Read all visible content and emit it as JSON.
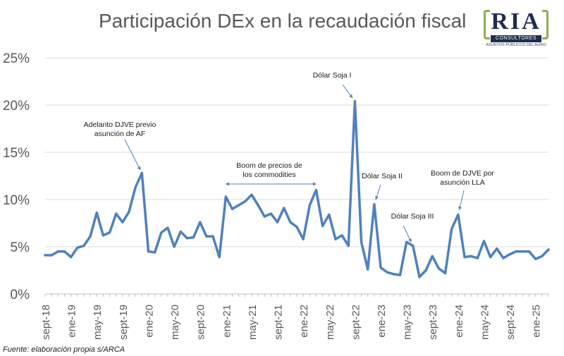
{
  "title": "Participación DEx en la recaudación fiscal",
  "source": "Fuente: elaboración propia s/ARCA",
  "logo": {
    "main": "RIA",
    "band": "CONSULTORES",
    "sub": "ASUNTOS PÚBLICOS DEL AGRO"
  },
  "colors": {
    "line": "#4f81bd",
    "grid": "#d9d9d9",
    "axis_text": "#595959",
    "arrow": "#4f81bd",
    "annotation_text": "#1a1a1a"
  },
  "chart_data": {
    "type": "line",
    "title": "Participación DEx en la recaudación fiscal",
    "xlabel": "",
    "ylabel": "",
    "ylim": [
      0,
      25
    ],
    "yticks": [
      0,
      5,
      10,
      15,
      20,
      25
    ],
    "ytick_labels": [
      "0%",
      "5%",
      "10%",
      "15%",
      "20%",
      "25%"
    ],
    "xtick_labels": [
      "sept-18",
      "ene-19",
      "may-19",
      "sept-19",
      "ene-20",
      "may-20",
      "sept-20",
      "ene-21",
      "may-21",
      "sept-21",
      "ene-22",
      "may-22",
      "sept-22",
      "ene-23",
      "may-23",
      "sept-23",
      "ene-24",
      "may-24",
      "sept-24",
      "ene-25"
    ],
    "start": "sept-18",
    "series": [
      {
        "name": "Participación DEx",
        "values": [
          4.1,
          4.1,
          4.5,
          4.5,
          3.9,
          4.9,
          5.1,
          6.1,
          8.6,
          6.2,
          6.5,
          8.5,
          7.6,
          8.7,
          11.3,
          12.8,
          4.5,
          4.4,
          6.5,
          7.0,
          5.0,
          6.6,
          5.9,
          6.0,
          7.6,
          6.1,
          6.1,
          3.9,
          10.3,
          9.0,
          9.4,
          9.8,
          10.5,
          9.4,
          8.2,
          8.5,
          7.6,
          9.1,
          7.6,
          7.1,
          5.8,
          9.4,
          11.0,
          7.2,
          8.4,
          5.8,
          6.2,
          5.1,
          20.4,
          5.5,
          2.6,
          9.5,
          2.8,
          2.3,
          2.1,
          2.0,
          5.5,
          5.1,
          1.8,
          2.5,
          4.0,
          2.7,
          2.2,
          6.9,
          8.4,
          3.9,
          4.0,
          3.8,
          5.6,
          3.9,
          4.8,
          3.8,
          4.2,
          4.5,
          4.5,
          4.5,
          3.7,
          4.0,
          4.7
        ]
      }
    ],
    "annotations": [
      {
        "text": [
          "Adelanto DJVE previo",
          "asunción de AF"
        ],
        "target_index": 15
      },
      {
        "text": [
          "Boom de precios de",
          "los commodities"
        ],
        "range_start_index": 28,
        "range_end_index": 42
      },
      {
        "text": [
          "Dólar Soja I"
        ],
        "target_index": 48
      },
      {
        "text": [
          "Dólar Soja II"
        ],
        "target_index": 51
      },
      {
        "text": [
          "Dólar Soja III"
        ],
        "target_index": 57
      },
      {
        "text": [
          "Boom de DJVE por",
          "asunción LLA"
        ],
        "target_index": 64
      }
    ]
  }
}
